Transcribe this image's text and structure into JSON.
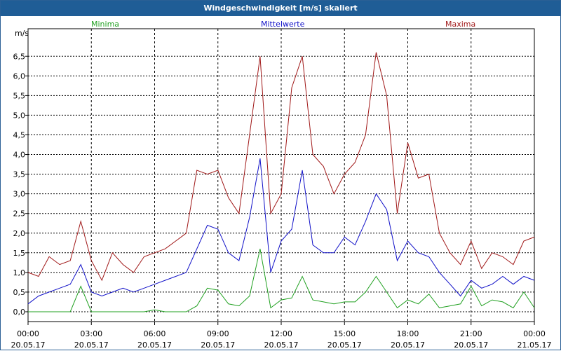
{
  "title": "Windgeschwindigkeit [m/s] skaliert",
  "legend": {
    "min": {
      "label": "Minima",
      "color": "#20a020"
    },
    "mean": {
      "label": "Mittelwerte",
      "color": "#1010c8"
    },
    "max": {
      "label": "Maxima",
      "color": "#a01818"
    }
  },
  "chart_data": {
    "type": "line",
    "title": "Windgeschwindigkeit [m/s] skaliert",
    "ylabel": "m/s",
    "xlabel": "",
    "ylim": [
      -0.25,
      7.2
    ],
    "xlim": [
      0,
      24
    ],
    "y_ticks": [
      "0,0",
      "0,5",
      "1,0",
      "1,5",
      "2,0",
      "2,5",
      "3,0",
      "3,5",
      "4,0",
      "4,5",
      "5,0",
      "5,5",
      "6,0",
      "6,5"
    ],
    "y_tick_values": [
      0,
      0.5,
      1,
      1.5,
      2,
      2.5,
      3,
      3.5,
      4,
      4.5,
      5,
      5.5,
      6,
      6.5
    ],
    "x_ticks": [
      {
        "time": "00:00",
        "date": "20.05.17",
        "hour": 0
      },
      {
        "time": "03:00",
        "date": "20.05.17",
        "hour": 3
      },
      {
        "time": "06:00",
        "date": "20.05.17",
        "hour": 6
      },
      {
        "time": "09:00",
        "date": "20.05.17",
        "hour": 9
      },
      {
        "time": "12:00",
        "date": "20.05.17",
        "hour": 12
      },
      {
        "time": "15:00",
        "date": "20.05.17",
        "hour": 15
      },
      {
        "time": "18:00",
        "date": "20.05.17",
        "hour": 18
      },
      {
        "time": "21:00",
        "date": "20.05.17",
        "hour": 21
      },
      {
        "time": "00:00",
        "date": "21.05.17",
        "hour": 24
      }
    ],
    "grid": true,
    "series": [
      {
        "name": "Maxima",
        "x": [
          0,
          0.5,
          1,
          1.5,
          2,
          2.5,
          3,
          3.5,
          4,
          4.5,
          5,
          5.5,
          6,
          6.5,
          7,
          7.5,
          8,
          8.5,
          9,
          9.5,
          10,
          10.5,
          11,
          11.5,
          12,
          12.5,
          13,
          13.5,
          14,
          14.5,
          15,
          15.5,
          16,
          16.5,
          17,
          17.5,
          18,
          18.5,
          19,
          19.5,
          20,
          20.5,
          21,
          21.5,
          22,
          22.5,
          23,
          23.5,
          24
        ],
        "values": [
          1.0,
          0.9,
          1.4,
          1.2,
          1.3,
          2.3,
          1.3,
          0.8,
          1.5,
          1.2,
          1.0,
          1.4,
          1.5,
          1.6,
          1.8,
          2.0,
          3.6,
          3.5,
          3.6,
          2.9,
          2.5,
          4.5,
          6.5,
          2.5,
          3.0,
          5.7,
          6.5,
          4.0,
          3.7,
          3.0,
          3.5,
          3.8,
          4.5,
          6.6,
          5.5,
          2.5,
          4.3,
          3.4,
          3.5,
          2.0,
          1.5,
          1.2,
          1.8,
          1.1,
          1.5,
          1.4,
          1.2,
          1.8,
          1.9
        ]
      },
      {
        "name": "Mittelwerte",
        "x": [
          0,
          0.5,
          1,
          1.5,
          2,
          2.5,
          3,
          3.5,
          4,
          4.5,
          5,
          5.5,
          6,
          6.5,
          7,
          7.5,
          8,
          8.5,
          9,
          9.5,
          10,
          10.5,
          11,
          11.5,
          12,
          12.5,
          13,
          13.5,
          14,
          14.5,
          15,
          15.5,
          16,
          16.5,
          17,
          17.5,
          18,
          18.5,
          19,
          19.5,
          20,
          20.5,
          21,
          21.5,
          22,
          22.5,
          23,
          23.5,
          24
        ],
        "values": [
          0.2,
          0.4,
          0.5,
          0.6,
          0.7,
          1.2,
          0.5,
          0.4,
          0.5,
          0.6,
          0.5,
          0.6,
          0.7,
          0.8,
          0.9,
          1.0,
          1.6,
          2.2,
          2.1,
          1.5,
          1.3,
          2.4,
          3.9,
          1.0,
          1.8,
          2.1,
          3.6,
          1.7,
          1.5,
          1.5,
          1.9,
          1.7,
          2.3,
          3.0,
          2.6,
          1.3,
          1.8,
          1.5,
          1.4,
          1.0,
          0.7,
          0.4,
          0.8,
          0.6,
          0.7,
          0.9,
          0.7,
          0.9,
          0.8
        ]
      },
      {
        "name": "Minima",
        "x": [
          0,
          0.5,
          1,
          1.5,
          2,
          2.5,
          3,
          3.5,
          4,
          4.5,
          5,
          5.5,
          6,
          6.5,
          7,
          7.5,
          8,
          8.5,
          9,
          9.5,
          10,
          10.5,
          11,
          11.5,
          12,
          12.5,
          13,
          13.5,
          14,
          14.5,
          15,
          15.5,
          16,
          16.5,
          17,
          17.5,
          18,
          18.5,
          19,
          19.5,
          20,
          20.5,
          21,
          21.5,
          22,
          22.5,
          23,
          23.5,
          24
        ],
        "values": [
          0,
          0,
          0,
          0,
          0,
          0.65,
          0,
          0,
          0,
          0,
          0,
          0,
          0.05,
          0,
          0,
          0,
          0.15,
          0.6,
          0.55,
          0.2,
          0.15,
          0.4,
          1.6,
          0.1,
          0.3,
          0.35,
          0.9,
          0.3,
          0.25,
          0.2,
          0.25,
          0.25,
          0.5,
          0.9,
          0.5,
          0.1,
          0.3,
          0.2,
          0.45,
          0.1,
          0.15,
          0.2,
          0.65,
          0.15,
          0.3,
          0.25,
          0.1,
          0.5,
          0.1
        ]
      }
    ]
  }
}
